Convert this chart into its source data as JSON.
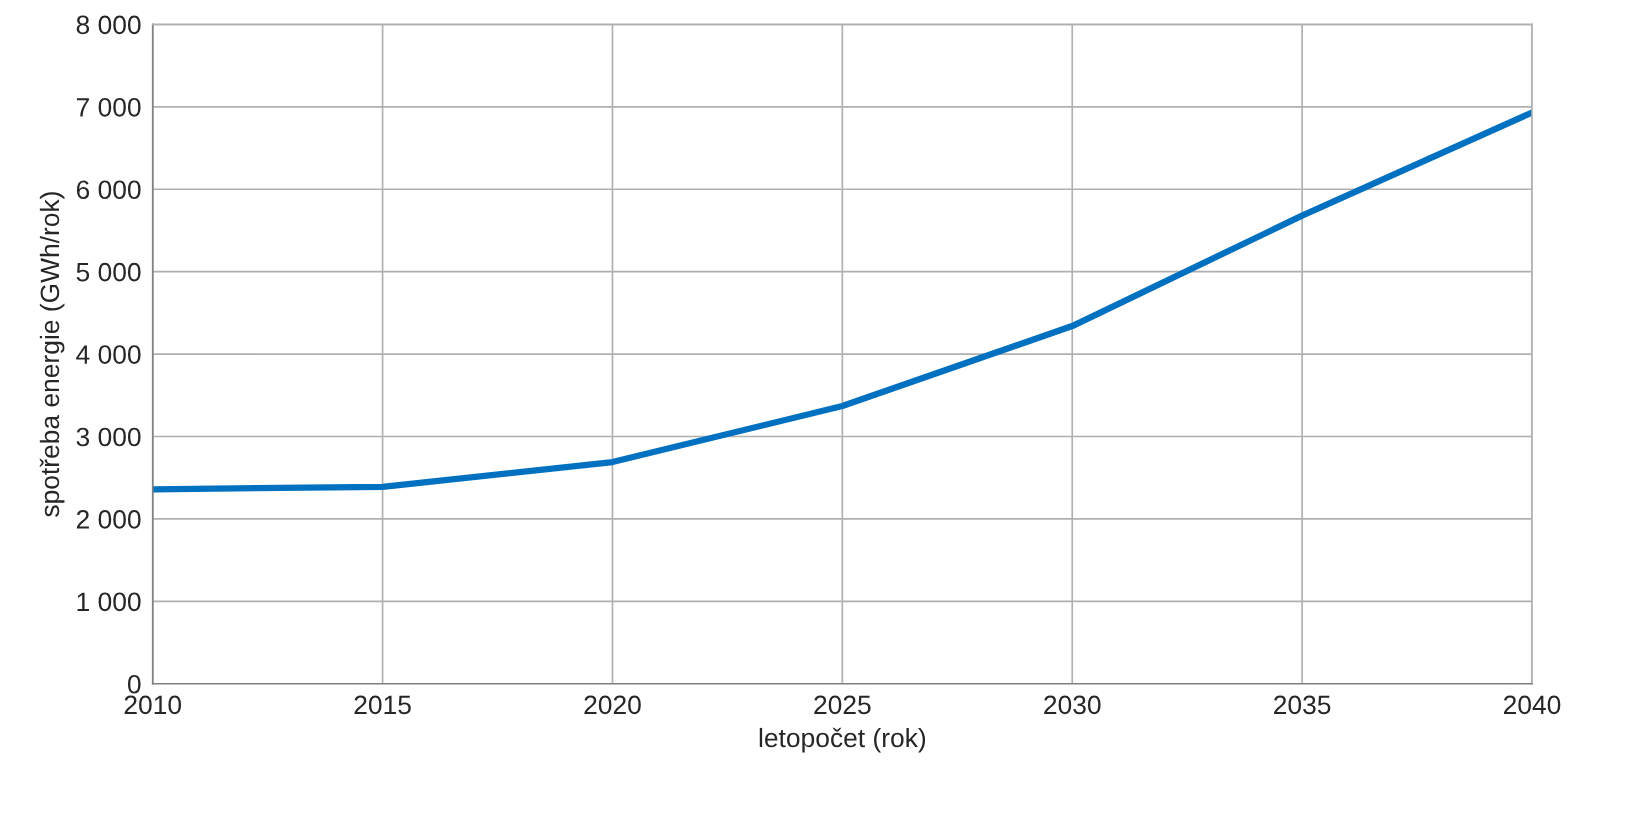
{
  "chart_data": {
    "type": "line",
    "xlabel": "letopočet (rok)",
    "ylabel": "spotřeba energie (GWh/rok)",
    "x": [
      2010,
      2015,
      2020,
      2025,
      2030,
      2035,
      2040
    ],
    "series": [
      {
        "color": "#0070c0",
        "values": [
          2360,
          2390,
          2690,
          3370,
          4340,
          5680,
          6930
        ]
      }
    ],
    "xlim": [
      2010,
      2040
    ],
    "xticks": [
      2010,
      2015,
      2020,
      2025,
      2030,
      2035,
      2040
    ],
    "ylim": [
      0,
      8000
    ],
    "yticks": [
      0,
      {
        "value": 1000,
        "label": "1 000"
      },
      {
        "value": 2000,
        "label": "2 000"
      },
      {
        "value": 3000,
        "label": "3 000"
      },
      {
        "value": 4000,
        "label": "4 000"
      },
      {
        "value": 5000,
        "label": "5 000"
      },
      {
        "value": 6000,
        "label": "6 000"
      },
      {
        "value": 7000,
        "label": "7 000"
      },
      {
        "value": 8000,
        "label": "8 000"
      }
    ],
    "grid": true,
    "marker": "none",
    "line_style": "solid"
  }
}
